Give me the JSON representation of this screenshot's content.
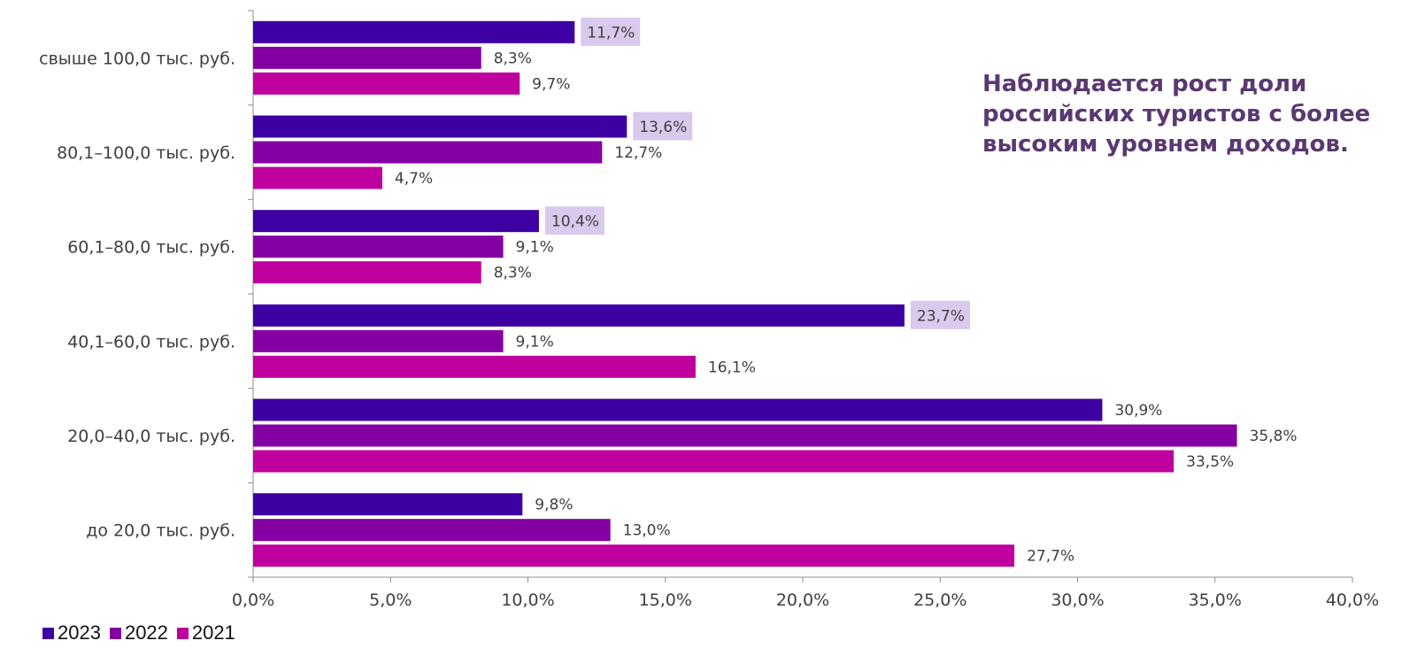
{
  "chart_data": {
    "type": "bar",
    "orientation": "horizontal",
    "categories": [
      "свыше 100,0 тыс. руб.",
      "80,1–100,0 тыс. руб.",
      "60,1–80,0 тыс. руб.",
      "40,1–60,0 тыс. руб.",
      "20,0–40,0 тыс. руб.",
      "до 20,0 тыс. руб."
    ],
    "series": [
      {
        "name": "2023",
        "color": "#3d00a3",
        "values": [
          11.7,
          13.6,
          10.4,
          23.7,
          30.9,
          9.8
        ],
        "labels": [
          "11,7%",
          "13,6%",
          "10,4%",
          "23,7%",
          "30,9%",
          "9,8%"
        ]
      },
      {
        "name": "2022",
        "color": "#8400a3",
        "values": [
          8.3,
          12.7,
          9.1,
          9.1,
          35.8,
          13.0
        ],
        "labels": [
          "8,3%",
          "12,7%",
          "9,1%",
          "9,1%",
          "35,8%",
          "13,0%"
        ]
      },
      {
        "name": "2021",
        "color": "#c0009e",
        "values": [
          9.7,
          4.7,
          8.3,
          16.1,
          33.5,
          27.7
        ],
        "labels": [
          "9,7%",
          "4,7%",
          "8,3%",
          "16,1%",
          "33,5%",
          "27,7%"
        ]
      }
    ],
    "highlighted_labels": {
      "series": "2023",
      "categories": [
        0,
        1,
        2,
        3
      ],
      "color": "#d9c9ec"
    },
    "xlim": [
      0,
      40
    ],
    "xticks": [
      0,
      5,
      10,
      15,
      20,
      25,
      30,
      35,
      40
    ],
    "xtick_labels": [
      "0,0%",
      "5,0%",
      "10,0%",
      "15,0%",
      "20,0%",
      "25,0%",
      "30,0%",
      "35,0%",
      "40,0%"
    ],
    "legend_position": "bottom-left",
    "grid": false
  },
  "annotation": {
    "lines": [
      "Наблюдается рост доли",
      "российских туристов с более",
      "высоким уровнем доходов."
    ],
    "color": "#5a3870"
  },
  "legend": {
    "items": [
      "2023",
      "2022",
      "2021"
    ]
  }
}
